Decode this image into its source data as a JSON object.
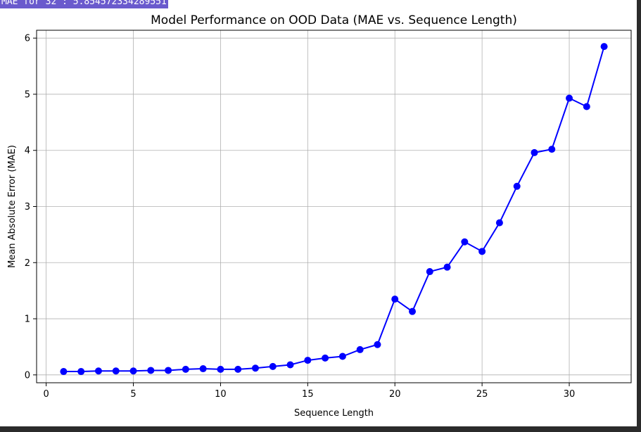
{
  "output_text": "MAE for 32 : 5.854572334289551",
  "chart_data": {
    "type": "line",
    "title": "Model Performance on OOD Data (MAE vs. Sequence Length)",
    "xlabel": "Sequence Length",
    "ylabel": "Mean Absolute Error (MAE)",
    "xlim": [
      -0.55,
      33.55
    ],
    "ylim": [
      -0.14,
      6.14
    ],
    "xticks": [
      0,
      5,
      10,
      15,
      20,
      25,
      30
    ],
    "xtick_labels": [
      "0",
      "5",
      "10",
      "15",
      "20",
      "25",
      "30"
    ],
    "yticks": [
      0,
      1,
      2,
      3,
      4,
      5,
      6
    ],
    "ytick_labels": [
      "0",
      "1",
      "2",
      "3",
      "4",
      "5",
      "6"
    ],
    "grid": true,
    "line_color": "#0000ff",
    "marker": "circle",
    "x": [
      1,
      2,
      3,
      4,
      5,
      6,
      7,
      8,
      9,
      10,
      11,
      12,
      13,
      14,
      15,
      16,
      17,
      18,
      19,
      20,
      21,
      22,
      23,
      24,
      25,
      26,
      27,
      28,
      29,
      30,
      31,
      32
    ],
    "y": [
      0.06,
      0.06,
      0.07,
      0.07,
      0.07,
      0.08,
      0.08,
      0.1,
      0.11,
      0.1,
      0.1,
      0.12,
      0.15,
      0.18,
      0.26,
      0.3,
      0.33,
      0.45,
      0.54,
      1.35,
      1.13,
      1.84,
      1.92,
      2.37,
      2.2,
      2.71,
      3.36,
      3.96,
      4.02,
      4.93,
      4.78,
      5.85
    ]
  }
}
